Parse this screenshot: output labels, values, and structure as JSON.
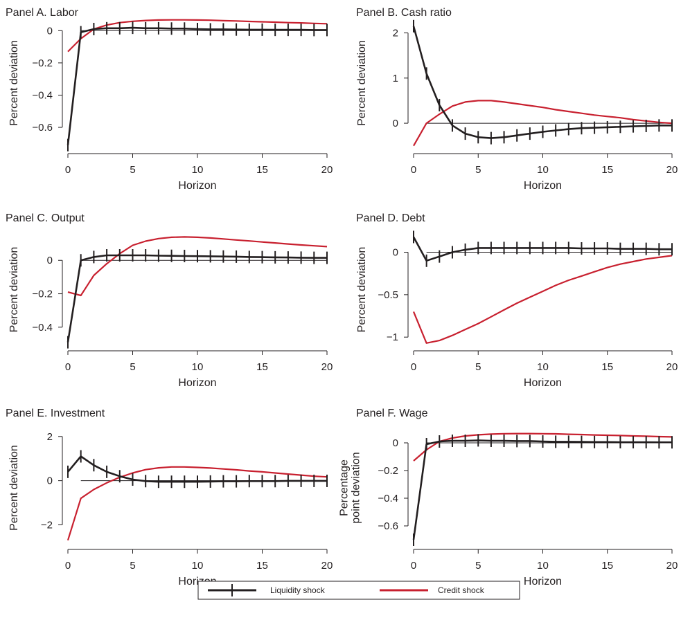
{
  "colors": {
    "liquidity": "#231f20",
    "credit": "#c8202f",
    "axis": "#231f20"
  },
  "legend": {
    "liquidity_label": "Liquidity shock",
    "credit_label": "Credit shock"
  },
  "chart_data": [
    {
      "type": "line",
      "title": "Panel A. Labor",
      "xlabel": "Horizon",
      "ylabel": [
        "Percent deviation"
      ],
      "xlim": [
        0,
        20
      ],
      "ylim": [
        -0.72,
        0.07
      ],
      "xticks": [
        0,
        5,
        10,
        15,
        20
      ],
      "yticks": [
        0,
        -0.2,
        -0.4,
        -0.6
      ],
      "ytick_labels": [
        "0",
        "−0.2",
        "−0.4",
        "−0.6"
      ],
      "x": [
        0,
        1,
        2,
        3,
        4,
        5,
        6,
        7,
        8,
        9,
        10,
        11,
        12,
        13,
        14,
        15,
        16,
        17,
        18,
        19,
        20
      ],
      "series": [
        {
          "name": "Liquidity shock",
          "markers": true,
          "values": [
            -0.71,
            -0.01,
            0.01,
            0.015,
            0.015,
            0.018,
            0.015,
            0.015,
            0.013,
            0.013,
            0.01,
            0.008,
            0.008,
            0.007,
            0.006,
            0.006,
            0.005,
            0.005,
            0.005,
            0.004,
            0.004
          ]
        },
        {
          "name": "Credit shock",
          "values": [
            -0.13,
            -0.05,
            0.01,
            0.035,
            0.05,
            0.058,
            0.063,
            0.066,
            0.067,
            0.067,
            0.066,
            0.065,
            0.062,
            0.06,
            0.057,
            0.055,
            0.053,
            0.05,
            0.048,
            0.045,
            0.043
          ]
        }
      ]
    },
    {
      "type": "line",
      "title": "Panel B. Cash ratio",
      "xlabel": "Horizon",
      "ylabel": [
        "Percent deviation"
      ],
      "xlim": [
        0,
        20
      ],
      "ylim": [
        -0.52,
        2.3
      ],
      "xticks": [
        0,
        5,
        10,
        15,
        20
      ],
      "yticks": [
        2,
        1,
        0
      ],
      "ytick_labels": [
        "2",
        "1",
        "0"
      ],
      "x": [
        0,
        1,
        2,
        3,
        4,
        5,
        6,
        7,
        8,
        9,
        10,
        11,
        12,
        13,
        14,
        15,
        16,
        17,
        18,
        19,
        20
      ],
      "series": [
        {
          "name": "Liquidity shock",
          "markers": true,
          "values": [
            2.15,
            1.1,
            0.4,
            -0.05,
            -0.23,
            -0.31,
            -0.33,
            -0.31,
            -0.27,
            -0.23,
            -0.19,
            -0.16,
            -0.13,
            -0.11,
            -0.1,
            -0.09,
            -0.08,
            -0.07,
            -0.06,
            -0.05,
            -0.05
          ]
        },
        {
          "name": "Credit shock",
          "values": [
            -0.5,
            0.0,
            0.2,
            0.38,
            0.47,
            0.5,
            0.5,
            0.47,
            0.43,
            0.39,
            0.35,
            0.3,
            0.26,
            0.22,
            0.18,
            0.15,
            0.12,
            0.08,
            0.05,
            0.02,
            0.0
          ]
        }
      ]
    },
    {
      "type": "line",
      "title": "Panel C. Output",
      "xlabel": "Horizon",
      "ylabel": [
        "Percent deviation"
      ],
      "xlim": [
        0,
        20
      ],
      "ylim": [
        -0.5,
        0.15
      ],
      "xticks": [
        0,
        5,
        10,
        15,
        20
      ],
      "yticks": [
        0,
        -0.2,
        -0.4
      ],
      "ytick_labels": [
        "0",
        "−0.2",
        "−0.4"
      ],
      "x": [
        0,
        1,
        2,
        3,
        4,
        5,
        6,
        7,
        8,
        9,
        10,
        11,
        12,
        13,
        14,
        15,
        16,
        17,
        18,
        19,
        20
      ],
      "series": [
        {
          "name": "Liquidity shock",
          "markers": true,
          "values": [
            -0.49,
            0.0,
            0.02,
            0.03,
            0.03,
            0.03,
            0.03,
            0.028,
            0.027,
            0.026,
            0.025,
            0.024,
            0.023,
            0.022,
            0.02,
            0.019,
            0.018,
            0.017,
            0.016,
            0.015,
            0.015
          ]
        },
        {
          "name": "Credit shock",
          "values": [
            -0.19,
            -0.21,
            -0.09,
            -0.02,
            0.04,
            0.09,
            0.115,
            0.13,
            0.138,
            0.14,
            0.138,
            0.134,
            0.128,
            0.122,
            0.116,
            0.11,
            0.104,
            0.098,
            0.092,
            0.087,
            0.082
          ]
        }
      ]
    },
    {
      "type": "line",
      "title": "Panel D. Debt",
      "xlabel": "Horizon",
      "ylabel": [
        "Percent deviation"
      ],
      "xlim": [
        0,
        20
      ],
      "ylim": [
        -1.08,
        0.2
      ],
      "xticks": [
        0,
        5,
        10,
        15,
        20
      ],
      "yticks": [
        0,
        -0.5,
        -1
      ],
      "ytick_labels": [
        "0",
        "−0.5",
        "−1"
      ],
      "x": [
        0,
        1,
        2,
        3,
        4,
        5,
        6,
        7,
        8,
        9,
        10,
        11,
        12,
        13,
        14,
        15,
        16,
        17,
        18,
        19,
        20
      ],
      "series": [
        {
          "name": "Liquidity shock",
          "markers": true,
          "values": [
            0.18,
            -0.1,
            -0.05,
            0.0,
            0.03,
            0.05,
            0.05,
            0.05,
            0.05,
            0.05,
            0.05,
            0.05,
            0.05,
            0.045,
            0.045,
            0.045,
            0.04,
            0.04,
            0.04,
            0.035,
            0.035
          ]
        },
        {
          "name": "Credit shock",
          "values": [
            -0.7,
            -1.07,
            -1.04,
            -0.98,
            -0.91,
            -0.84,
            -0.76,
            -0.68,
            -0.6,
            -0.53,
            -0.46,
            -0.39,
            -0.33,
            -0.28,
            -0.23,
            -0.18,
            -0.14,
            -0.11,
            -0.08,
            -0.06,
            -0.04
          ]
        }
      ]
    },
    {
      "type": "line",
      "title": "Panel E. Investment",
      "xlabel": "Horizon",
      "ylabel": [
        "Percent deviation"
      ],
      "xlim": [
        0,
        20
      ],
      "ylim": [
        -2.8,
        2.15
      ],
      "xticks": [
        0,
        5,
        10,
        15,
        20
      ],
      "yticks": [
        2,
        0,
        -2
      ],
      "ytick_labels": [
        "2",
        "0",
        "−2"
      ],
      "x": [
        0,
        1,
        2,
        3,
        4,
        5,
        6,
        7,
        8,
        9,
        10,
        11,
        12,
        13,
        14,
        15,
        16,
        17,
        18,
        19,
        20
      ],
      "series": [
        {
          "name": "Liquidity shock",
          "markers": true,
          "values": [
            0.4,
            1.1,
            0.7,
            0.4,
            0.2,
            0.05,
            -0.02,
            -0.05,
            -0.05,
            -0.05,
            -0.05,
            -0.04,
            -0.03,
            -0.03,
            -0.02,
            -0.02,
            -0.02,
            -0.01,
            -0.01,
            -0.01,
            -0.01
          ]
        },
        {
          "name": "Credit shock",
          "values": [
            -2.7,
            -0.8,
            -0.4,
            -0.1,
            0.15,
            0.35,
            0.5,
            0.58,
            0.62,
            0.62,
            0.6,
            0.57,
            0.53,
            0.49,
            0.44,
            0.4,
            0.35,
            0.3,
            0.25,
            0.2,
            0.17
          ]
        }
      ]
    },
    {
      "type": "line",
      "title": "Panel F. Wage",
      "xlabel": "Horizon",
      "ylabel": [
        "Percentage",
        "point deviation"
      ],
      "xlim": [
        0,
        20
      ],
      "ylim": [
        -0.72,
        0.07
      ],
      "xticks": [
        0,
        5,
        10,
        15,
        20
      ],
      "yticks": [
        0,
        -0.2,
        -0.4,
        -0.6
      ],
      "ytick_labels": [
        "0",
        "−0.2",
        "−0.4",
        "−0.6"
      ],
      "x": [
        0,
        1,
        2,
        3,
        4,
        5,
        6,
        7,
        8,
        9,
        10,
        11,
        12,
        13,
        14,
        15,
        16,
        17,
        18,
        19,
        20
      ],
      "series": [
        {
          "name": "Liquidity shock",
          "markers": true,
          "values": [
            -0.7,
            -0.01,
            0.01,
            0.015,
            0.015,
            0.018,
            0.015,
            0.015,
            0.013,
            0.013,
            0.01,
            0.008,
            0.008,
            0.007,
            0.006,
            0.006,
            0.005,
            0.005,
            0.005,
            0.004,
            0.004
          ]
        },
        {
          "name": "Credit shock",
          "values": [
            -0.13,
            -0.05,
            0.01,
            0.035,
            0.05,
            0.058,
            0.063,
            0.066,
            0.067,
            0.067,
            0.066,
            0.065,
            0.062,
            0.06,
            0.057,
            0.055,
            0.053,
            0.05,
            0.048,
            0.045,
            0.043
          ]
        }
      ]
    }
  ]
}
